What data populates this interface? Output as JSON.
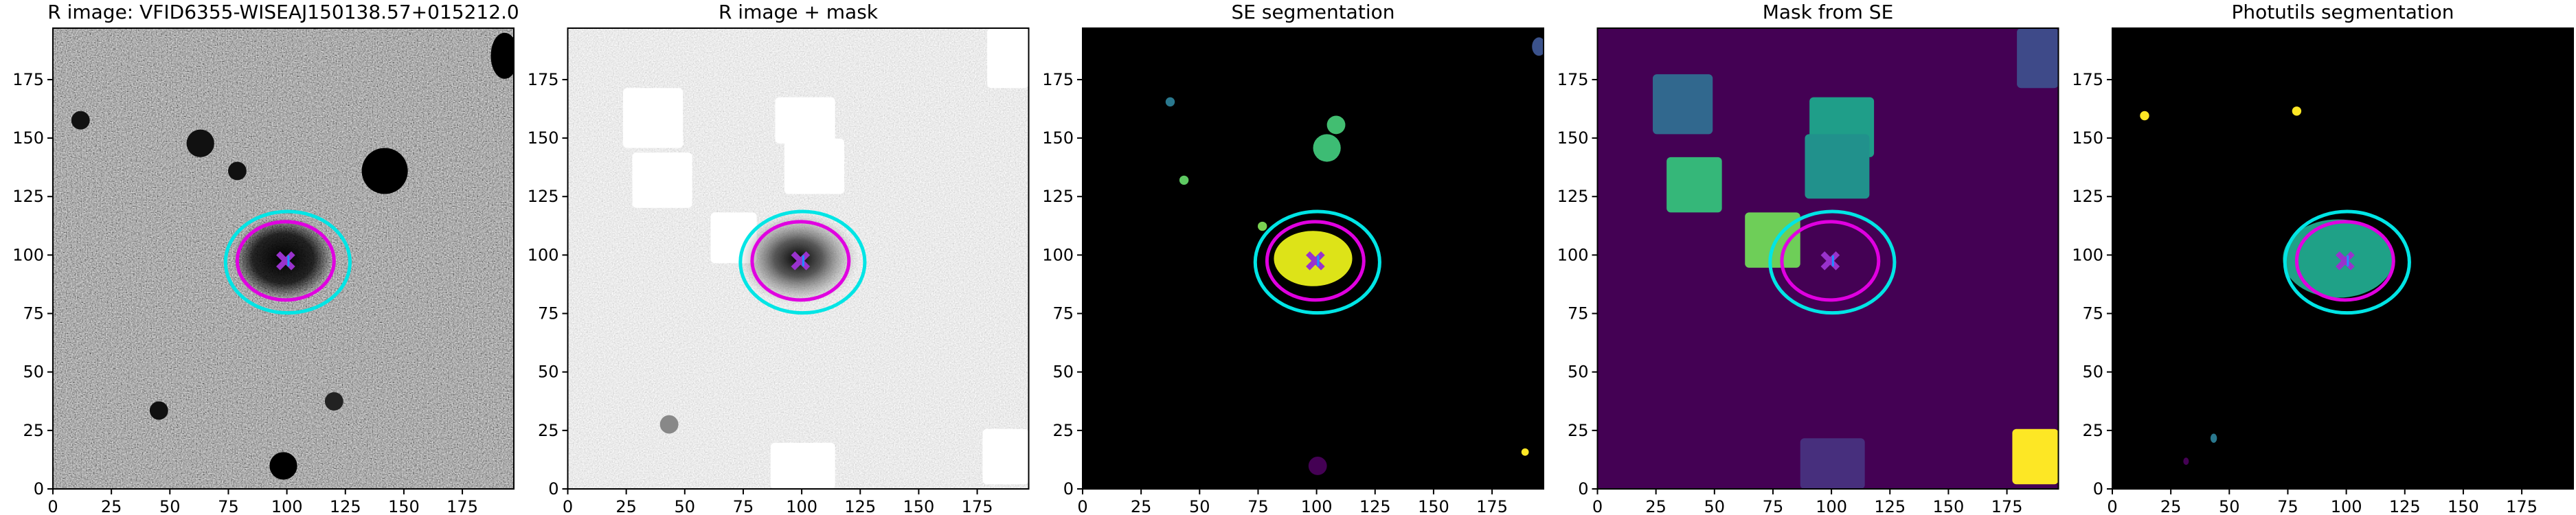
{
  "chart_data": [
    {
      "type": "image",
      "title": "R image: VFID6355-WISEAJ150138.57+015212.0",
      "xlim": [
        0,
        197
      ],
      "ylim": [
        0,
        197
      ],
      "xticks": [
        0,
        25,
        50,
        75,
        100,
        125,
        150,
        175
      ],
      "yticks": [
        0,
        25,
        50,
        75,
        100,
        125,
        150,
        175
      ]
    },
    {
      "type": "image",
      "title": "R image + mask",
      "xlim": [
        0,
        197
      ],
      "ylim": [
        0,
        197
      ],
      "xticks": [
        0,
        25,
        50,
        75,
        100,
        125,
        150,
        175
      ],
      "yticks": [
        0,
        25,
        50,
        75,
        100,
        125,
        150,
        175
      ]
    },
    {
      "type": "image",
      "title": "SE segmentation",
      "xlim": [
        0,
        197
      ],
      "ylim": [
        0,
        197
      ],
      "xticks": [
        0,
        25,
        50,
        75,
        100,
        125,
        150,
        175
      ],
      "yticks": [
        0,
        25,
        50,
        75,
        100,
        125,
        150,
        175
      ]
    },
    {
      "type": "image",
      "title": "Mask from SE",
      "xlim": [
        0,
        197
      ],
      "ylim": [
        0,
        197
      ],
      "xticks": [
        0,
        25,
        50,
        75,
        100,
        125,
        150,
        175
      ],
      "yticks": [
        0,
        25,
        50,
        75,
        100,
        125,
        150,
        175
      ]
    },
    {
      "type": "image",
      "title": "Photutils segmentation",
      "xlim": [
        0,
        197
      ],
      "ylim": [
        0,
        197
      ],
      "xticks": [
        0,
        25,
        50,
        75,
        100,
        125,
        150,
        175
      ],
      "yticks": [
        0,
        25,
        50,
        75,
        100,
        125,
        150,
        175
      ]
    }
  ]
}
